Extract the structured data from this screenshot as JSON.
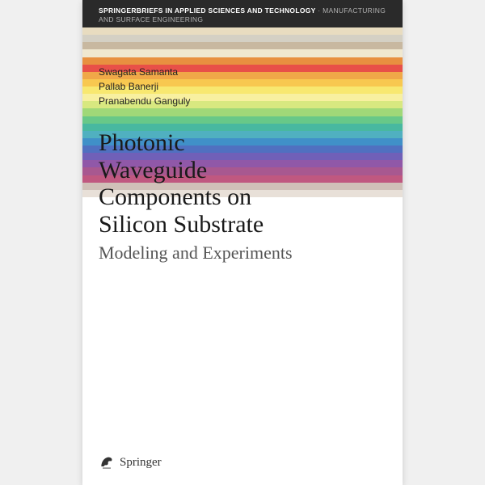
{
  "series": {
    "main": "SpringerBriefs in Applied Sciences and Technology",
    "sub": "Manufacturing and Surface Engineering",
    "bg_color": "#2a2a2a",
    "text_color": "#ffffff",
    "sub_color": "#b0b0b0"
  },
  "authors": [
    "Swagata Samanta",
    "Pallab Banerji",
    "Pranabendu Ganguly"
  ],
  "title": "Photonic Waveguide Components on Silicon Substrate",
  "subtitle": "Modeling and Experiments",
  "publisher": "Springer",
  "stripes": [
    "#e8dcc0",
    "#d4d0c4",
    "#c8b8a0",
    "#f0e8d0",
    "#e89040",
    "#e85048",
    "#f0a848",
    "#f8c850",
    "#f8e870",
    "#f8f0a0",
    "#d8e880",
    "#a0d878",
    "#68c888",
    "#48b8a0",
    "#50b0c0",
    "#4090c8",
    "#5070c0",
    "#7060b8",
    "#9058a8",
    "#a85890",
    "#c05880",
    "#d0c0b8",
    "#e8e0d8"
  ],
  "cover_bg": "#ffffff",
  "title_color": "#1a1a1a",
  "subtitle_color": "#555555",
  "author_color": "#222222"
}
